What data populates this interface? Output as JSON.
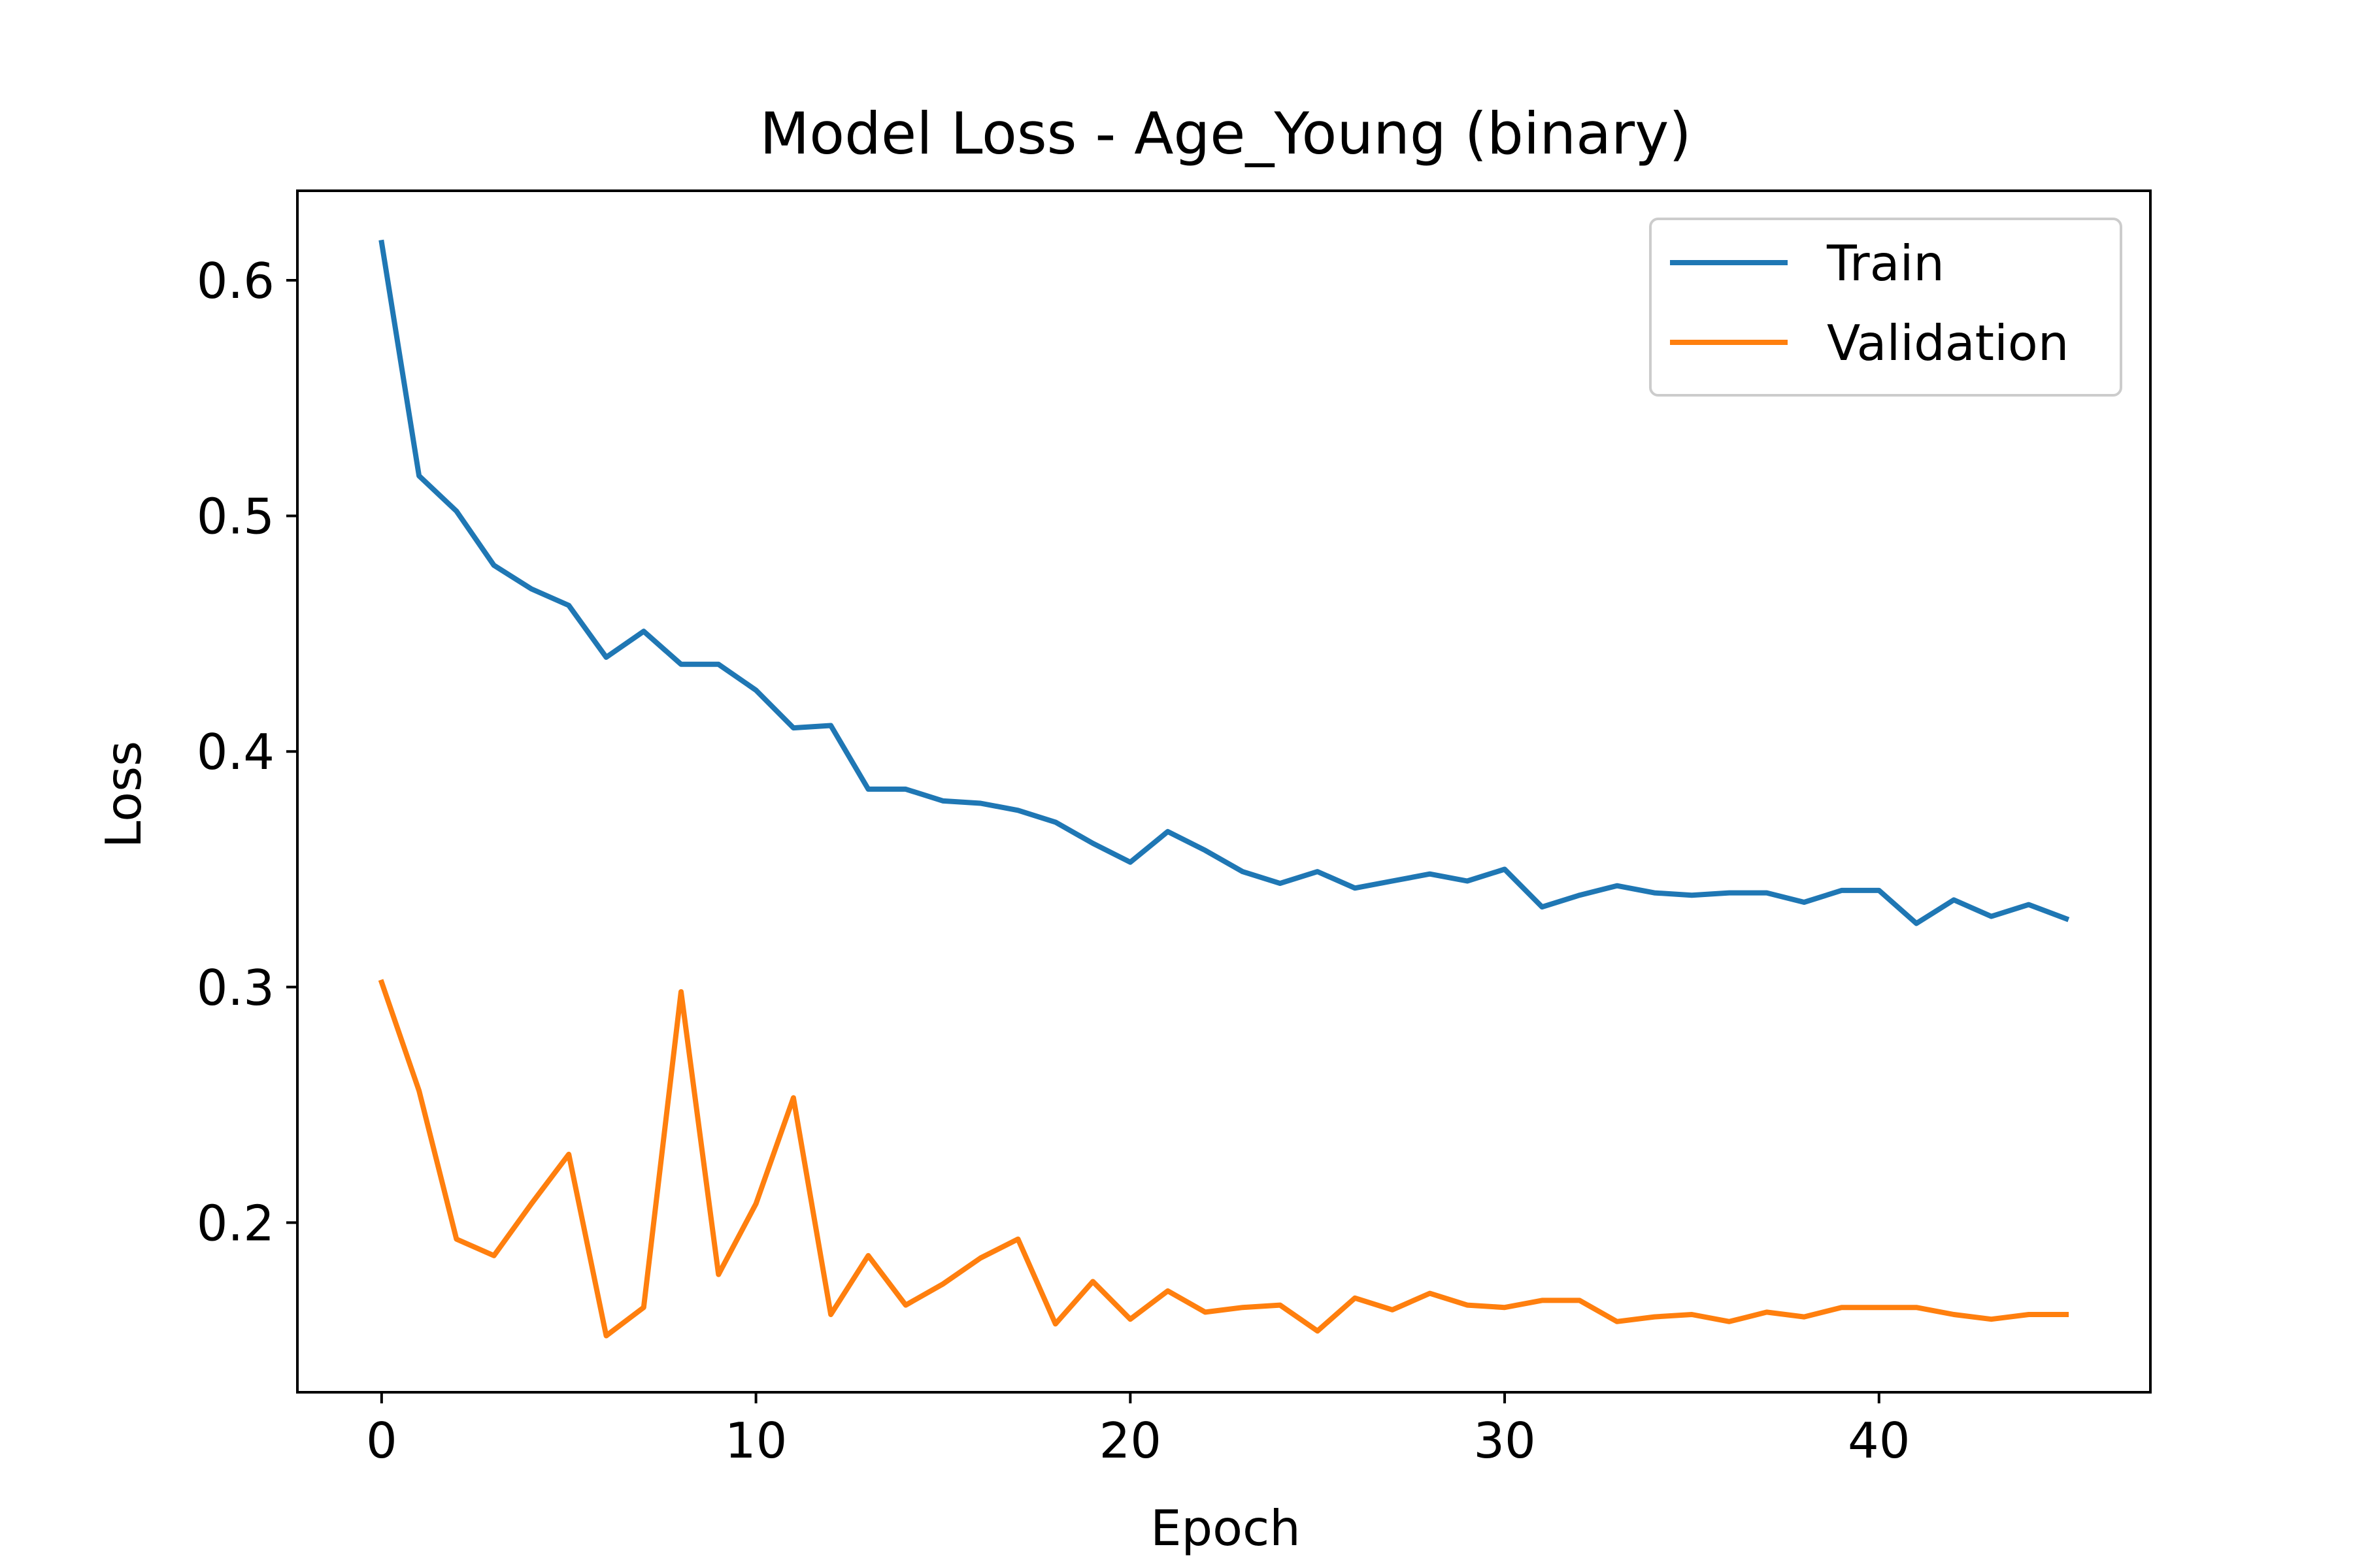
{
  "chart_data": {
    "type": "line",
    "title": "Model Loss - Age_Young (binary)",
    "xlabel": "Epoch",
    "ylabel": "Loss",
    "xlim": [
      -2.25,
      47.25
    ],
    "ylim": [
      0.128,
      0.638
    ],
    "xticks": [
      0,
      10,
      20,
      30,
      40
    ],
    "yticks": [
      0.2,
      0.3,
      0.4,
      0.5,
      0.6
    ],
    "xtick_labels": [
      "0",
      "10",
      "20",
      "30",
      "40"
    ],
    "ytick_labels": [
      "0.2",
      "0.3",
      "0.4",
      "0.5",
      "0.6"
    ],
    "grid": false,
    "legend_position": "upper-right",
    "x": [
      0,
      1,
      2,
      3,
      4,
      5,
      6,
      7,
      8,
      9,
      10,
      11,
      12,
      13,
      14,
      15,
      16,
      17,
      18,
      19,
      20,
      21,
      22,
      23,
      24,
      25,
      26,
      27,
      28,
      29,
      30,
      31,
      32,
      33,
      34,
      35,
      36,
      37,
      38,
      39,
      40,
      41,
      42,
      43,
      44,
      45
    ],
    "series": [
      {
        "name": "Train",
        "color": "#1f77b4",
        "values": [
          0.616,
          0.517,
          0.502,
          0.479,
          0.469,
          0.462,
          0.44,
          0.451,
          0.437,
          0.437,
          0.426,
          0.41,
          0.411,
          0.384,
          0.384,
          0.379,
          0.378,
          0.375,
          0.37,
          0.361,
          0.353,
          0.366,
          0.358,
          0.349,
          0.344,
          0.349,
          0.342,
          0.345,
          0.348,
          0.345,
          0.35,
          0.334,
          0.339,
          0.343,
          0.34,
          0.339,
          0.34,
          0.34,
          0.336,
          0.341,
          0.341,
          0.327,
          0.337,
          0.33,
          0.335,
          0.329
        ]
      },
      {
        "name": "Validation",
        "color": "#ff7f0e",
        "values": [
          0.302,
          0.256,
          0.193,
          0.186,
          0.208,
          0.229,
          0.152,
          0.164,
          0.298,
          0.178,
          0.208,
          0.253,
          0.161,
          0.186,
          0.165,
          0.174,
          0.185,
          0.193,
          0.157,
          0.175,
          0.159,
          0.171,
          0.162,
          0.164,
          0.165,
          0.154,
          0.168,
          0.163,
          0.17,
          0.165,
          0.164,
          0.167,
          0.167,
          0.158,
          0.16,
          0.161,
          0.158,
          0.162,
          0.16,
          0.164,
          0.164,
          0.164,
          0.161,
          0.159,
          0.161,
          0.161
        ]
      }
    ]
  }
}
